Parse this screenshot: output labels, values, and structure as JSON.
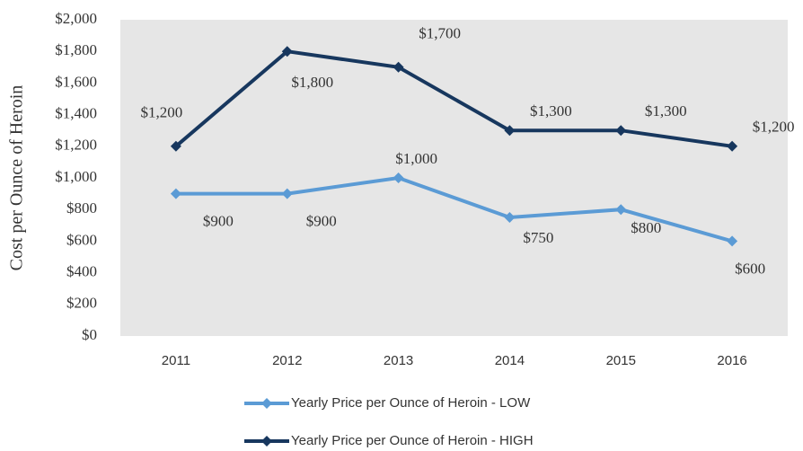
{
  "chart_data": {
    "type": "line",
    "ylabel": "Cost per Ounce of Heroin",
    "categories": [
      "2011",
      "2012",
      "2013",
      "2014",
      "2015",
      "2016"
    ],
    "series": [
      {
        "name": "Yearly Price per Ounce of Heroin - LOW",
        "color": "#5b9bd5",
        "values": [
          900,
          900,
          1000,
          750,
          800,
          600
        ],
        "value_labels": [
          "$900",
          "$900",
          "$1,000",
          "$750",
          "$800",
          "$600"
        ]
      },
      {
        "name": "Yearly Price per Ounce of Heroin - HIGH",
        "color": "#17375e",
        "values": [
          1200,
          1800,
          1700,
          1300,
          1300,
          1200
        ],
        "value_labels": [
          "$1,200",
          "$1,800",
          "$1,700",
          "$1,300",
          "$1,300",
          "$1,200"
        ]
      }
    ],
    "ylim": [
      0,
      2000
    ],
    "yticks": [
      {
        "value": 0,
        "label": "$0"
      },
      {
        "value": 200,
        "label": "$200"
      },
      {
        "value": 400,
        "label": "$400"
      },
      {
        "value": 600,
        "label": "$600"
      },
      {
        "value": 800,
        "label": "$800"
      },
      {
        "value": 1000,
        "label": "$1,000"
      },
      {
        "value": 1200,
        "label": "$1,200"
      },
      {
        "value": 1400,
        "label": "$1,400"
      },
      {
        "value": 1600,
        "label": "$1,600"
      },
      {
        "value": 1800,
        "label": "$1,800"
      },
      {
        "value": 2000,
        "label": "$2,000"
      }
    ],
    "legend": "bottom"
  }
}
